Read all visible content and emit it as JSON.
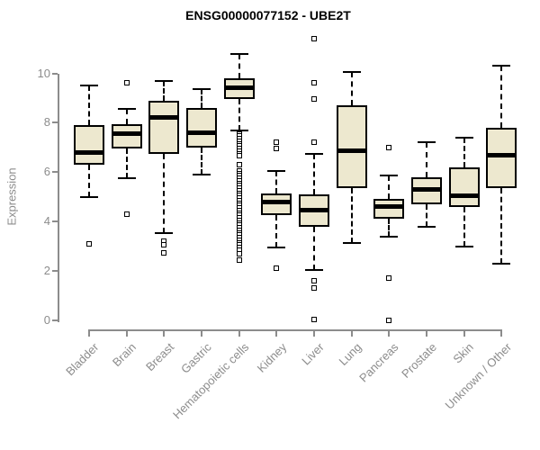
{
  "title": "ENSG00000077152 - UBE2T",
  "colors": {
    "box_fill": "#ede8cf",
    "box_border": "#000000",
    "median": "#000000",
    "axis": "#8c8c8c",
    "axis_text": "#8c8c8c",
    "title_text": "#000000",
    "background": "#ffffff"
  },
  "chart_data": {
    "type": "boxplot",
    "title": "ENSG00000077152 - UBE2T",
    "xlabel": "",
    "ylabel": "Expression",
    "ylim": [
      0,
      11.6
    ],
    "yticks": [
      0,
      2,
      4,
      6,
      8,
      10
    ],
    "grid": false,
    "legend": "none",
    "categories": [
      "Bladder",
      "Brain",
      "Breast",
      "Gastric",
      "Hematopoietic cells",
      "Kidney",
      "Liver",
      "Lung",
      "Pancreas",
      "Prostate",
      "Skin",
      "Unknown / Other"
    ],
    "series": [
      {
        "category": "Bladder",
        "whisker_low": 5.0,
        "q1": 6.3,
        "median": 6.8,
        "q3": 7.9,
        "whisker_high": 9.5,
        "outliers": [
          3.1
        ]
      },
      {
        "category": "Brain",
        "whisker_low": 5.75,
        "q1": 6.95,
        "median": 7.55,
        "q3": 7.95,
        "whisker_high": 8.55,
        "outliers": [
          9.6,
          4.3
        ]
      },
      {
        "category": "Breast",
        "whisker_low": 3.55,
        "q1": 6.75,
        "median": 8.2,
        "q3": 8.9,
        "whisker_high": 9.7,
        "outliers": [
          3.2,
          3.05,
          2.75
        ]
      },
      {
        "category": "Gastric",
        "whisker_low": 5.9,
        "q1": 7.0,
        "median": 7.6,
        "q3": 8.6,
        "whisker_high": 9.35,
        "outliers": []
      },
      {
        "category": "Hematopoietic cells",
        "whisker_low": 7.7,
        "q1": 8.95,
        "median": 9.4,
        "q3": 9.8,
        "whisker_high": 10.78,
        "outliers": [
          7.55,
          7.45,
          7.35,
          7.25,
          7.15,
          7.05,
          6.95,
          6.85,
          6.75,
          6.65,
          6.3,
          6.05,
          5.95,
          5.85,
          5.75,
          5.65,
          5.55,
          5.45,
          5.35,
          5.25,
          5.15,
          5.05,
          4.95,
          4.85,
          4.75,
          4.65,
          4.55,
          4.45,
          4.35,
          4.25,
          4.15,
          4.05,
          3.95,
          3.85,
          3.75,
          3.65,
          3.55,
          3.45,
          3.35,
          3.25,
          3.15,
          3.05,
          2.95,
          2.85,
          2.7,
          2.45
        ]
      },
      {
        "category": "Kidney",
        "whisker_low": 2.95,
        "q1": 4.25,
        "median": 4.8,
        "q3": 5.15,
        "whisker_high": 6.05,
        "outliers": [
          7.2,
          6.95,
          2.1
        ]
      },
      {
        "category": "Liver",
        "whisker_low": 2.05,
        "q1": 3.8,
        "median": 4.45,
        "q3": 5.1,
        "whisker_high": 6.75,
        "outliers": [
          11.4,
          9.6,
          8.95,
          7.2,
          1.6,
          1.3,
          0.05
        ]
      },
      {
        "category": "Lung",
        "whisker_low": 3.15,
        "q1": 5.35,
        "median": 6.85,
        "q3": 8.7,
        "whisker_high": 10.05,
        "outliers": []
      },
      {
        "category": "Pancreas",
        "whisker_low": 3.4,
        "q1": 4.1,
        "median": 4.6,
        "q3": 4.9,
        "whisker_high": 5.85,
        "outliers": [
          7.0,
          1.7,
          0.0
        ]
      },
      {
        "category": "Prostate",
        "whisker_low": 3.8,
        "q1": 4.7,
        "median": 5.3,
        "q3": 5.8,
        "whisker_high": 7.2,
        "outliers": []
      },
      {
        "category": "Skin",
        "whisker_low": 3.0,
        "q1": 4.6,
        "median": 5.05,
        "q3": 6.2,
        "whisker_high": 7.4,
        "outliers": []
      },
      {
        "category": "Unknown / Other",
        "whisker_low": 2.3,
        "q1": 5.35,
        "median": 6.7,
        "q3": 7.8,
        "whisker_high": 10.3,
        "outliers": []
      }
    ]
  }
}
